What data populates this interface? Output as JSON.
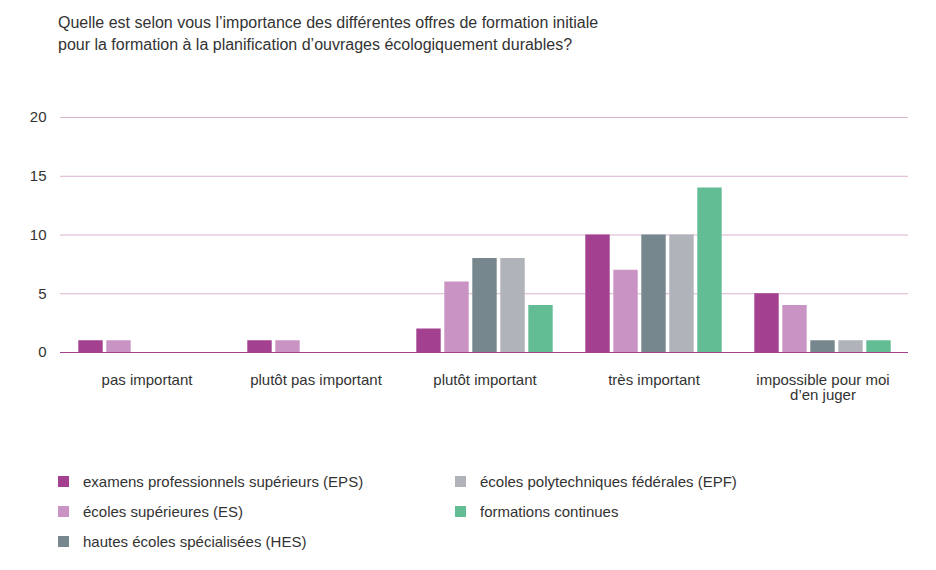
{
  "chart_data": {
    "type": "bar",
    "title": "Quelle est selon vous l’importance des différentes offres de formation initiale pour la formation à la planification d’ouvrages écologiquement durables?",
    "categories": [
      "pas important",
      "plutôt pas important",
      "plutôt important",
      "très important",
      "impossible pour moi d’en juger"
    ],
    "series": [
      {
        "name": "examens professionnels supérieurs (EPS)",
        "color": "#a3408f",
        "values": [
          1,
          1,
          2,
          10,
          5
        ]
      },
      {
        "name": "écoles supérieures (ES)",
        "color": "#c994c4",
        "values": [
          1,
          1,
          6,
          7,
          4
        ]
      },
      {
        "name": "hautes écoles spécialisées (HES)",
        "color": "#77878e",
        "values": [
          0,
          0,
          8,
          10,
          1
        ]
      },
      {
        "name": "écoles polytechniques fédérales (EPF)",
        "color": "#b0b3b9",
        "values": [
          0,
          0,
          8,
          10,
          1
        ]
      },
      {
        "name": "formations continues",
        "color": "#62bd95",
        "values": [
          0,
          0,
          4,
          14,
          1
        ]
      }
    ],
    "ylim": [
      0,
      20
    ],
    "yticks": [
      0,
      5,
      10,
      15,
      20
    ],
    "grid": true,
    "legend": "bottom"
  }
}
